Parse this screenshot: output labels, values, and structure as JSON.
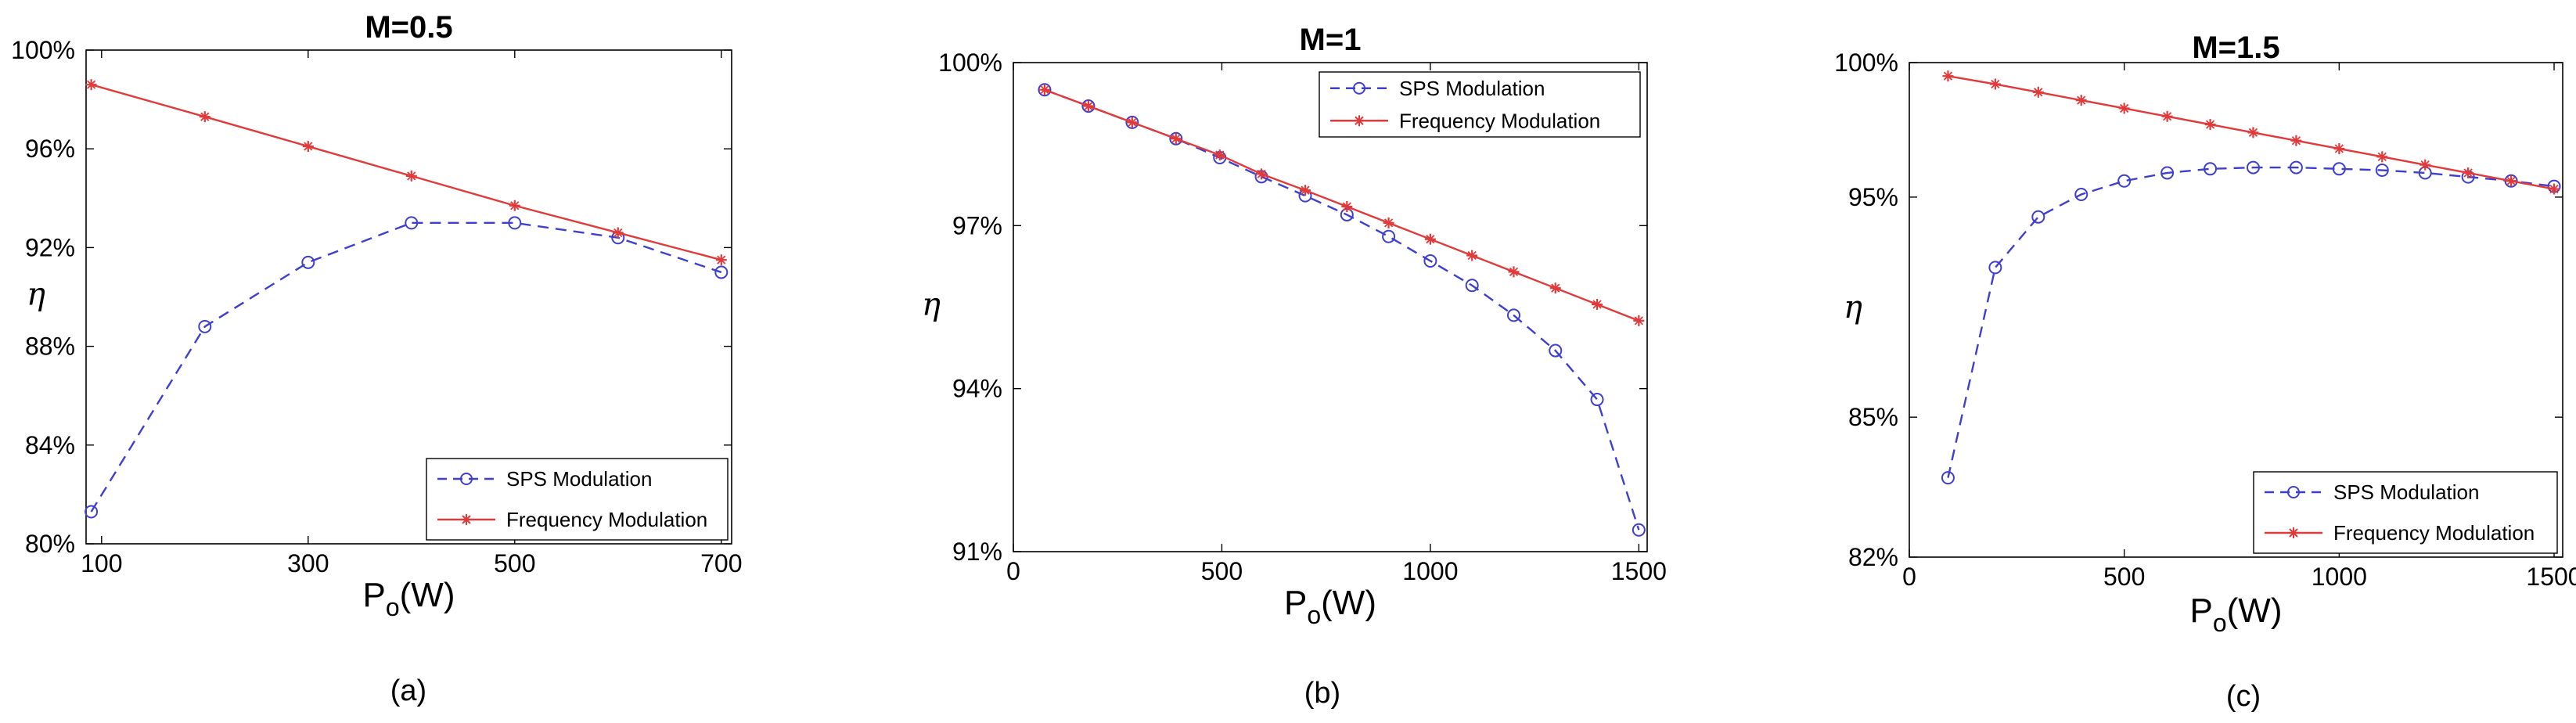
{
  "colors": {
    "sps": "#3f3fcf",
    "freq": "#e03a3a",
    "axis": "#000000"
  },
  "chart_data": [
    {
      "type": "line",
      "title": "M=0.5",
      "caption": "(a)",
      "xlabel": "P",
      "xlabel_sub": "o",
      "xlabel_unit": "(W)",
      "ylabel": "η",
      "xlim": [
        85,
        710
      ],
      "ylim": [
        80,
        100
      ],
      "xticks": [
        {
          "value": 100,
          "label": "100"
        },
        {
          "value": 300,
          "label": "300"
        },
        {
          "value": 500,
          "label": "500"
        },
        {
          "value": 700,
          "label": "700"
        }
      ],
      "yticks": [
        {
          "value": 80,
          "label": "80%"
        },
        {
          "value": 84,
          "label": "84%"
        },
        {
          "value": 88,
          "label": "88%"
        },
        {
          "value": 92,
          "label": "92%"
        },
        {
          "value": 96,
          "label": "96%"
        },
        {
          "value": 100,
          "label": "100%"
        }
      ],
      "legend_position": "bottom-right",
      "series": [
        {
          "name": "SPS Modulation",
          "key": "sps",
          "x": [
            90,
            200,
            300,
            400,
            500,
            600,
            700
          ],
          "values": [
            81.3,
            88.8,
            91.4,
            93.0,
            93.0,
            92.4,
            91.0
          ]
        },
        {
          "name": "Frequency Modulation",
          "key": "freq",
          "x": [
            90,
            200,
            300,
            400,
            500,
            600,
            700
          ],
          "values": [
            98.6,
            97.3,
            96.1,
            94.9,
            93.7,
            92.6,
            91.5
          ]
        }
      ]
    },
    {
      "type": "line",
      "title": "M=1",
      "caption": "(b)",
      "xlabel": "P",
      "xlabel_sub": "o",
      "xlabel_unit": "(W)",
      "ylabel": "η",
      "xlim": [
        0,
        1520
      ],
      "ylim": [
        91,
        100
      ],
      "xticks": [
        {
          "value": 0,
          "label": "0"
        },
        {
          "value": 500,
          "label": "500"
        },
        {
          "value": 1000,
          "label": "1000"
        },
        {
          "value": 1500,
          "label": "1500"
        }
      ],
      "yticks": [
        {
          "value": 91,
          "label": "91%"
        },
        {
          "value": 94,
          "label": "94%"
        },
        {
          "value": 97,
          "label": "97%"
        },
        {
          "value": 100,
          "label": "100%"
        }
      ],
      "legend_position": "top-right",
      "series": [
        {
          "name": "SPS Modulation",
          "key": "sps",
          "x": [
            75,
            180,
            285,
            390,
            495,
            595,
            700,
            800,
            900,
            1000,
            1100,
            1200,
            1300,
            1400,
            1500
          ],
          "values": [
            99.5,
            99.2,
            98.9,
            98.6,
            98.25,
            97.9,
            97.55,
            97.2,
            96.8,
            96.35,
            95.9,
            95.35,
            94.7,
            93.8,
            91.4
          ]
        },
        {
          "name": "Frequency Modulation",
          "key": "freq",
          "x": [
            75,
            180,
            285,
            390,
            495,
            595,
            700,
            800,
            900,
            1000,
            1100,
            1200,
            1300,
            1400,
            1500
          ],
          "values": [
            99.5,
            99.2,
            98.9,
            98.6,
            98.3,
            97.95,
            97.65,
            97.35,
            97.05,
            96.75,
            96.45,
            96.15,
            95.85,
            95.55,
            95.25
          ]
        }
      ]
    },
    {
      "type": "line",
      "title": "M=1.5",
      "caption": "(c)",
      "xlabel": "P",
      "xlabel_sub": "o",
      "xlabel_unit": "(W)",
      "ylabel": "η",
      "xlim": [
        0,
        1520
      ],
      "ylim": [
        82,
        100
      ],
      "xticks": [
        {
          "value": 0,
          "label": "0"
        },
        {
          "value": 500,
          "label": "500"
        },
        {
          "value": 1000,
          "label": "1000"
        },
        {
          "value": 1500,
          "label": "1500"
        }
      ],
      "yticks": [
        {
          "value": 82,
          "label": "82%"
        },
        {
          "value": 85,
          "label": "85%"
        },
        {
          "value": 95,
          "label": "95%"
        },
        {
          "value": 100,
          "label": "100%"
        }
      ],
      "y_scale_note": "tick labels unevenly spaced as printed",
      "legend_position": "bottom-right",
      "series": [
        {
          "name": "SPS Modulation",
          "key": "sps",
          "x": [
            90,
            200,
            300,
            400,
            500,
            600,
            700,
            800,
            900,
            1000,
            1100,
            1200,
            1300,
            1400,
            1500
          ],
          "values": [
            83.7,
            91.8,
            94.1,
            95.1,
            95.6,
            95.9,
            96.05,
            96.1,
            96.1,
            96.05,
            96.0,
            95.9,
            95.75,
            95.6,
            95.4
          ]
        },
        {
          "name": "Frequency Modulation",
          "key": "freq",
          "x": [
            90,
            200,
            300,
            400,
            500,
            600,
            700,
            800,
            900,
            1000,
            1100,
            1200,
            1300,
            1400,
            1500
          ],
          "values": [
            99.5,
            99.2,
            98.9,
            98.6,
            98.3,
            98.0,
            97.7,
            97.4,
            97.1,
            96.8,
            96.5,
            96.2,
            95.9,
            95.6,
            95.3
          ]
        }
      ]
    }
  ]
}
